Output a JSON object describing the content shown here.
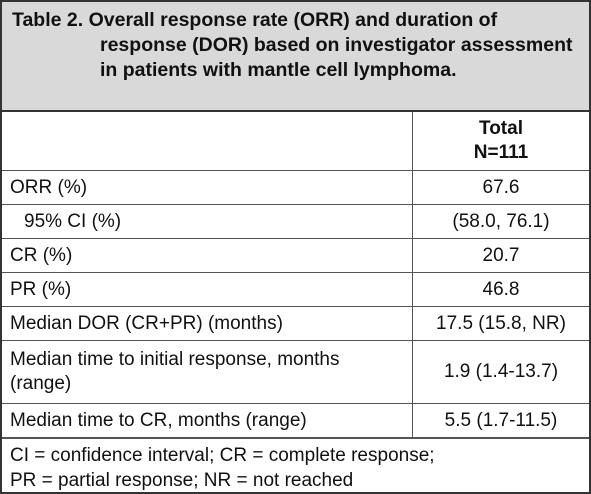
{
  "header": {
    "label": "Table 2.",
    "text": "Overall response rate (ORR) and duration of response (DOR) based on investigator assessment in patients with mantle cell lymphoma."
  },
  "table": {
    "column": {
      "title": "Total",
      "n": "N=111"
    },
    "rows": [
      [
        "ORR (%)",
        "67.6"
      ],
      [
        "95% CI (%)",
        "(58.0, 76.1)"
      ],
      [
        "CR (%)",
        "20.7"
      ],
      [
        "PR (%)",
        "46.8"
      ],
      [
        "Median DOR (CR+PR) (months)",
        "17.5 (15.8, NR)"
      ],
      [
        "Median time to initial response, months (range)",
        "1.9 (1.4-13.7)"
      ],
      [
        "Median time to CR, months (range)",
        "5.5 (1.7-11.5)"
      ]
    ]
  },
  "footnote": [
    "CI = confidence interval; CR = complete response;",
    "PR = partial response; NR = not reached"
  ]
}
